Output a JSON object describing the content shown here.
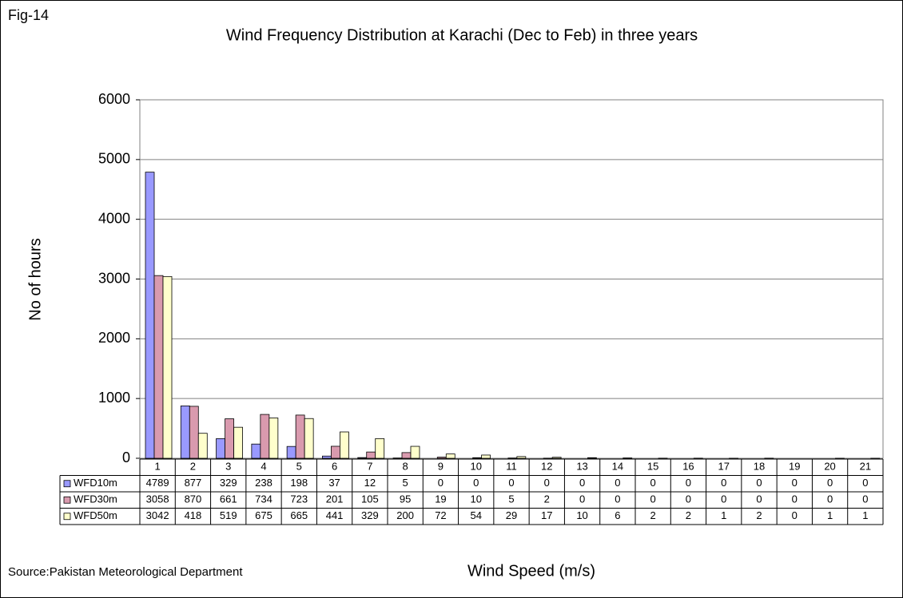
{
  "chart_data": {
    "type": "bar",
    "figure_label": "Fig-14",
    "title": "Wind Frequency Distribution at Karachi (Dec to Feb) in three years",
    "y_label": "No of hours",
    "x_label": "Wind Speed (m/s)",
    "source": "Source:Pakistan Meteorological Department",
    "categories": [
      "1",
      "2",
      "3",
      "4",
      "5",
      "6",
      "7",
      "8",
      "9",
      "10",
      "11",
      "12",
      "13",
      "14",
      "15",
      "16",
      "17",
      "18",
      "19",
      "20",
      "21"
    ],
    "series": [
      {
        "name": "WFD10m",
        "color": "#9999ff",
        "values": [
          4789,
          877,
          329,
          238,
          198,
          37,
          12,
          5,
          0,
          0,
          0,
          0,
          0,
          0,
          0,
          0,
          0,
          0,
          0,
          0,
          0
        ]
      },
      {
        "name": "WFD30m",
        "color": "#d99aae",
        "values": [
          3058,
          870,
          661,
          734,
          723,
          201,
          105,
          95,
          19,
          10,
          5,
          2,
          0,
          0,
          0,
          0,
          0,
          0,
          0,
          0,
          0
        ]
      },
      {
        "name": "WFD50m",
        "color": "#ffffcc",
        "values": [
          3042,
          418,
          519,
          675,
          665,
          441,
          329,
          200,
          72,
          54,
          29,
          17,
          10,
          6,
          2,
          2,
          1,
          2,
          0,
          1,
          1
        ]
      }
    ],
    "ylim": [
      0,
      6000
    ],
    "yticks": [
      0,
      1000,
      2000,
      3000,
      4000,
      5000,
      6000
    ],
    "grid": true
  }
}
